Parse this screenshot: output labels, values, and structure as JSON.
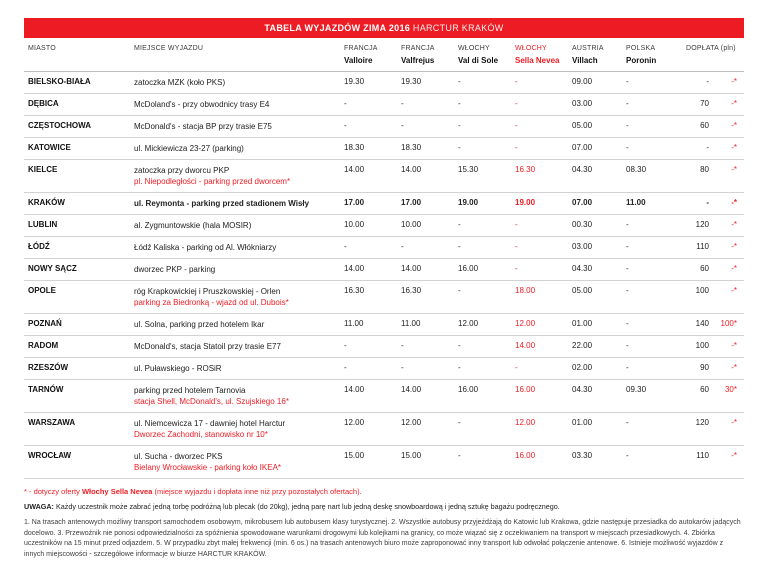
{
  "colors": {
    "accent": "#ed1c24",
    "grid": "#d2d2d2"
  },
  "title": {
    "bold": "TABELA WYJAZDÓW ZIMA 2016",
    "normal": "HARCTUR KRAKÓW"
  },
  "table": {
    "columns": [
      {
        "line1": "MIASTO",
        "line2": ""
      },
      {
        "line1": "MIEJSCE WYJAZDU",
        "line2": ""
      },
      {
        "line1": "FRANCJA",
        "line2": "Valloire"
      },
      {
        "line1": "FRANCJA",
        "line2": "Valfrejus"
      },
      {
        "line1": "WŁOCHY",
        "line2": "Val di Sole"
      },
      {
        "line1": "WŁOCHY",
        "line2": "Sella Nevea",
        "red": true
      },
      {
        "line1": "AUSTRIA",
        "line2": "Villach"
      },
      {
        "line1": "POLSKA",
        "line2": "Poronin"
      },
      {
        "line1": "DOPŁATA (pln)",
        "line2": ""
      }
    ],
    "rows": [
      {
        "city": "BIELSKO-BIAŁA",
        "place": "zatoczka MZK (koło PKS)",
        "times": [
          "19.30",
          "19.30",
          "-",
          "-",
          "09.00",
          "-"
        ],
        "fee": "-",
        "fee2": "-*"
      },
      {
        "city": "DĘBICA",
        "place": "McDoland's - przy obwodnicy trasy E4",
        "times": [
          "-",
          "-",
          "-",
          "-",
          "03.00",
          "-"
        ],
        "fee": "70",
        "fee2": "-*"
      },
      {
        "city": "CZĘSTOCHOWA",
        "place": "McDonald's - stacja BP przy trasie E75",
        "times": [
          "-",
          "-",
          "-",
          "-",
          "05.00",
          "-"
        ],
        "fee": "60",
        "fee2": "-*"
      },
      {
        "city": "KATOWICE",
        "place": "ul. Mickiewicza 23-27 (parking)",
        "times": [
          "18.30",
          "18.30",
          "-",
          "-",
          "07.00",
          "-"
        ],
        "fee": "-",
        "fee2": "-*"
      },
      {
        "city": "KIELCE",
        "place": "zatoczka przy dworcu PKP",
        "place2": "pl. Niepodległości - parking przed dworcem*",
        "place2_red": true,
        "times": [
          "14.00",
          "14.00",
          "15.30",
          "16.30",
          "04.30",
          "08.30"
        ],
        "fee": "80",
        "fee2": "-*"
      },
      {
        "city": "KRAKÓW",
        "place": "ul. Reymonta - parking przed stadionem Wisły",
        "bold": true,
        "times": [
          "17.00",
          "17.00",
          "19.00",
          "19.00",
          "07.00",
          "11.00"
        ],
        "fee": "-",
        "fee2": "-*"
      },
      {
        "city": "LUBLIN",
        "place": "al. Zygmuntowskie (hala MOSIR)",
        "times": [
          "10.00",
          "10.00",
          "-",
          "-",
          "00.30",
          "-"
        ],
        "fee": "120",
        "fee2": "-*"
      },
      {
        "city": "ŁÓDŹ",
        "place": "Łódź Kaliska - parking od Al. Włókniarzy",
        "times": [
          "-",
          "-",
          "-",
          "-",
          "03.00",
          "-"
        ],
        "fee": "110",
        "fee2": "-*"
      },
      {
        "city": "NOWY SĄCZ",
        "place": "dworzec PKP - parking",
        "times": [
          "14.00",
          "14.00",
          "16.00",
          "-",
          "04.30",
          "-"
        ],
        "fee": "60",
        "fee2": "-*"
      },
      {
        "city": "OPOLE",
        "place": "róg Krapkowickiej i Pruszkowskiej - Orlen",
        "place2": "parking za Biedronką - wjazd od ul. Dubois*",
        "place2_red": true,
        "times": [
          "16.30",
          "16.30",
          "-",
          "18.00",
          "05.00",
          "-"
        ],
        "fee": "100",
        "fee2": "-*"
      },
      {
        "city": "POZNAŃ",
        "place": "ul. Solna, parking przed hotelem Ikar",
        "times": [
          "11.00",
          "11.00",
          "12.00",
          "12.00",
          "01.00",
          "-"
        ],
        "fee": "140",
        "fee2": "100*"
      },
      {
        "city": "RADOM",
        "place": "McDonald's, stacja Statoil przy trasie E77",
        "times": [
          "-",
          "-",
          "-",
          "14.00",
          "22.00",
          "-"
        ],
        "fee": "100",
        "fee2": "-*"
      },
      {
        "city": "RZESZÓW",
        "place": "ul. Puławskiego - ROSiR",
        "times": [
          "-",
          "-",
          "-",
          "-",
          "02.00",
          "-"
        ],
        "fee": "90",
        "fee2": "-*"
      },
      {
        "city": "TARNÓW",
        "place": "parking przed hotelem Tarnovia",
        "place2": "stacja Shell, McDonald's, ul. Szujskiego 16*",
        "place2_red": true,
        "times": [
          "14.00",
          "14.00",
          "16.00",
          "16.00",
          "04.30",
          "09.30"
        ],
        "fee": "60",
        "fee2": "30*"
      },
      {
        "city": "WARSZAWA",
        "place": "ul. Niemcewicza 17 - dawniej hotel Harctur",
        "place2": "Dworzec Zachodni, stanowisko nr 10*",
        "place2_red": true,
        "times": [
          "12.00",
          "12.00",
          "-",
          "12.00",
          "01.00",
          "-"
        ],
        "fee": "120",
        "fee2": "-*"
      },
      {
        "city": "WROCŁAW",
        "place": "ul. Sucha - dworzec PKS",
        "place2": "Bielany Wrocławskie - parking koło IKEA*",
        "place2_red": true,
        "times": [
          "15.00",
          "15.00",
          "-",
          "16.00",
          "03.30",
          "-"
        ],
        "fee": "110",
        "fee2": "-*"
      }
    ]
  },
  "footer": {
    "star_note_prefix": "* - dotyczy oferty ",
    "star_note_bold": "Włochy Sella Nevea",
    "star_note_suffix": " (miejsce wyjazdu i dopłata inne niż przy pozostałych ofertach).",
    "uwaga_label": "UWAGA:",
    "uwaga_text": " Każdy uczestnik może zabrać jedną torbę podróżną lub plecak (do 20kg), jedną parę nart lub jedną deskę snowboardową i jedną sztukę bagażu podręcznego.",
    "notes": "1. Na trasach antenowych możliwy transport samochodem osobowym, mikrobusem lub autobusem klasy turystycznej. 2. Wszystkie autobusy przyjeżdżają do Katowic lub Krakowa, gdzie następuje przesiadka do autokarów jadących docelowo. 3. Przewoźnik nie ponosi odpowiedzialności za spóźnienia spowodowane warunkami drogowymi lub kolejkami na granicy, co może wiązać się z oczekiwaniem na transport w miejscach przesiadkowych. 4. Zbiórka uczestników na 15 minut przed odjazdem. 5. W przypadku zbyt małej frekwencji (min. 6 os.) na trasach antenowych biuro może zaproponować inny transport lub odwołać połączenie antenowe. 6. Istnieje możliwość wyjazdów z innych miejscowości - szczegółowe informacje w biurze HARCTUR KRAKÓW."
  }
}
